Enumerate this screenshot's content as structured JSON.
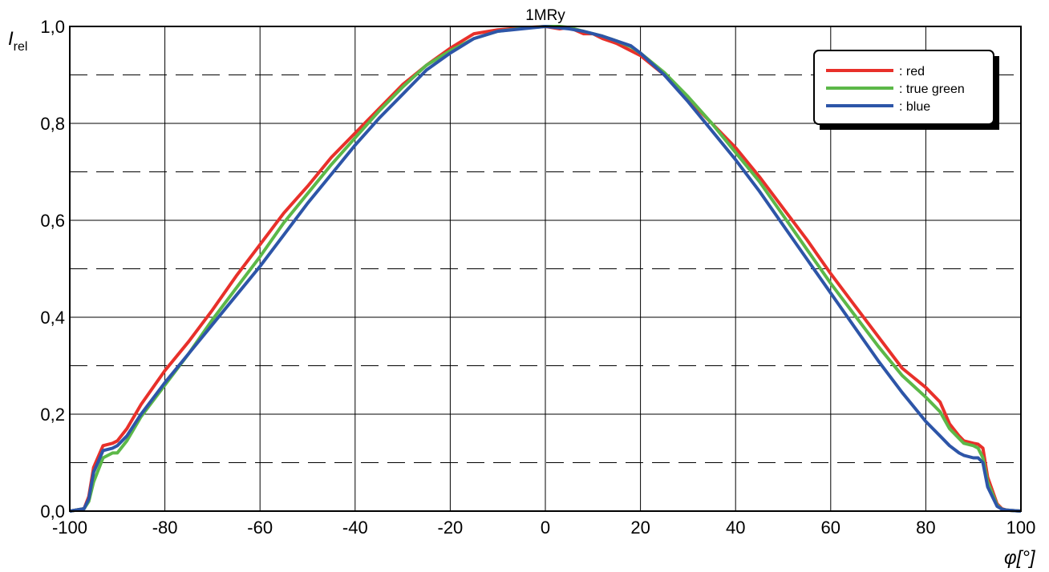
{
  "chart_data": {
    "type": "line",
    "title": "1MRy",
    "ylabel_main": "I",
    "ylabel_sub": "rel",
    "xlabel": "φ[°]",
    "xlim": [
      -100,
      100
    ],
    "ylim": [
      0,
      1
    ],
    "x_ticks": [
      "-100",
      "-80",
      "-60",
      "-40",
      "-20",
      "0",
      "20",
      "40",
      "60",
      "80",
      "100"
    ],
    "y_ticks": [
      "0,0",
      "0,2",
      "0,4",
      "0,6",
      "0,8",
      "1,0"
    ],
    "grid": true,
    "minor_grid_dashed": true,
    "legend_position": "top-right",
    "series": [
      {
        "name": ": red",
        "color": "#e8302a",
        "x": [
          -100,
          -97,
          -96,
          -95,
          -93,
          -91,
          -90,
          -88,
          -85,
          -80,
          -75,
          -70,
          -65,
          -60,
          -55,
          -50,
          -45,
          -40,
          -35,
          -30,
          -25,
          -20,
          -15,
          -10,
          -5,
          0,
          3,
          5,
          8,
          10,
          12,
          15,
          18,
          20,
          25,
          30,
          35,
          40,
          45,
          50,
          55,
          60,
          65,
          70,
          75,
          80,
          83,
          85,
          87,
          88,
          90,
          91,
          92,
          93,
          95,
          96,
          97,
          100
        ],
        "y": [
          0,
          0.005,
          0.03,
          0.09,
          0.135,
          0.14,
          0.145,
          0.17,
          0.22,
          0.29,
          0.35,
          0.415,
          0.485,
          0.55,
          0.615,
          0.67,
          0.73,
          0.78,
          0.83,
          0.88,
          0.92,
          0.955,
          0.985,
          0.993,
          0.997,
          1.0,
          0.995,
          0.998,
          0.985,
          0.985,
          0.975,
          0.965,
          0.95,
          0.94,
          0.9,
          0.85,
          0.8,
          0.75,
          0.69,
          0.625,
          0.56,
          0.49,
          0.425,
          0.36,
          0.295,
          0.255,
          0.225,
          0.18,
          0.155,
          0.145,
          0.14,
          0.138,
          0.13,
          0.07,
          0.015,
          0.005,
          0.002,
          0
        ]
      },
      {
        "name": ": true green",
        "color": "#5cb848",
        "x": [
          -100,
          -97,
          -96,
          -95,
          -93,
          -91,
          -90,
          -88,
          -85,
          -80,
          -75,
          -70,
          -65,
          -60,
          -55,
          -50,
          -45,
          -40,
          -35,
          -30,
          -25,
          -20,
          -15,
          -10,
          -5,
          0,
          3,
          5,
          8,
          10,
          12,
          15,
          18,
          20,
          25,
          30,
          35,
          40,
          45,
          50,
          55,
          60,
          65,
          70,
          75,
          80,
          83,
          85,
          87,
          88,
          90,
          91,
          92,
          93,
          95,
          96,
          97,
          100
        ],
        "y": [
          0,
          0.005,
          0.02,
          0.06,
          0.11,
          0.12,
          0.12,
          0.145,
          0.195,
          0.26,
          0.325,
          0.395,
          0.46,
          0.525,
          0.595,
          0.655,
          0.715,
          0.77,
          0.825,
          0.875,
          0.92,
          0.95,
          0.975,
          0.99,
          0.996,
          1.0,
          1.0,
          0.998,
          0.99,
          0.985,
          0.98,
          0.97,
          0.958,
          0.945,
          0.905,
          0.855,
          0.8,
          0.74,
          0.68,
          0.61,
          0.54,
          0.47,
          0.405,
          0.34,
          0.28,
          0.235,
          0.205,
          0.17,
          0.15,
          0.14,
          0.135,
          0.13,
          0.11,
          0.06,
          0.012,
          0.004,
          0.002,
          0
        ]
      },
      {
        "name": ": blue",
        "color": "#2d55a8",
        "x": [
          -100,
          -97,
          -96,
          -95,
          -93,
          -91,
          -90,
          -88,
          -85,
          -80,
          -75,
          -70,
          -65,
          -60,
          -55,
          -50,
          -45,
          -40,
          -35,
          -30,
          -25,
          -20,
          -15,
          -10,
          -5,
          0,
          3,
          5,
          8,
          10,
          12,
          15,
          18,
          20,
          25,
          30,
          35,
          40,
          45,
          50,
          55,
          60,
          65,
          70,
          75,
          80,
          83,
          85,
          87,
          88,
          90,
          91,
          92,
          93,
          95,
          96,
          97,
          100
        ],
        "y": [
          0,
          0.005,
          0.025,
          0.08,
          0.125,
          0.13,
          0.135,
          0.155,
          0.2,
          0.265,
          0.325,
          0.385,
          0.445,
          0.505,
          0.57,
          0.635,
          0.695,
          0.755,
          0.81,
          0.86,
          0.91,
          0.945,
          0.975,
          0.99,
          0.995,
          1.0,
          0.997,
          0.995,
          0.99,
          0.985,
          0.98,
          0.97,
          0.96,
          0.945,
          0.9,
          0.845,
          0.785,
          0.725,
          0.66,
          0.59,
          0.52,
          0.45,
          0.38,
          0.31,
          0.245,
          0.185,
          0.155,
          0.135,
          0.12,
          0.115,
          0.11,
          0.11,
          0.1,
          0.05,
          0.01,
          0.004,
          0.002,
          0
        ]
      }
    ]
  }
}
